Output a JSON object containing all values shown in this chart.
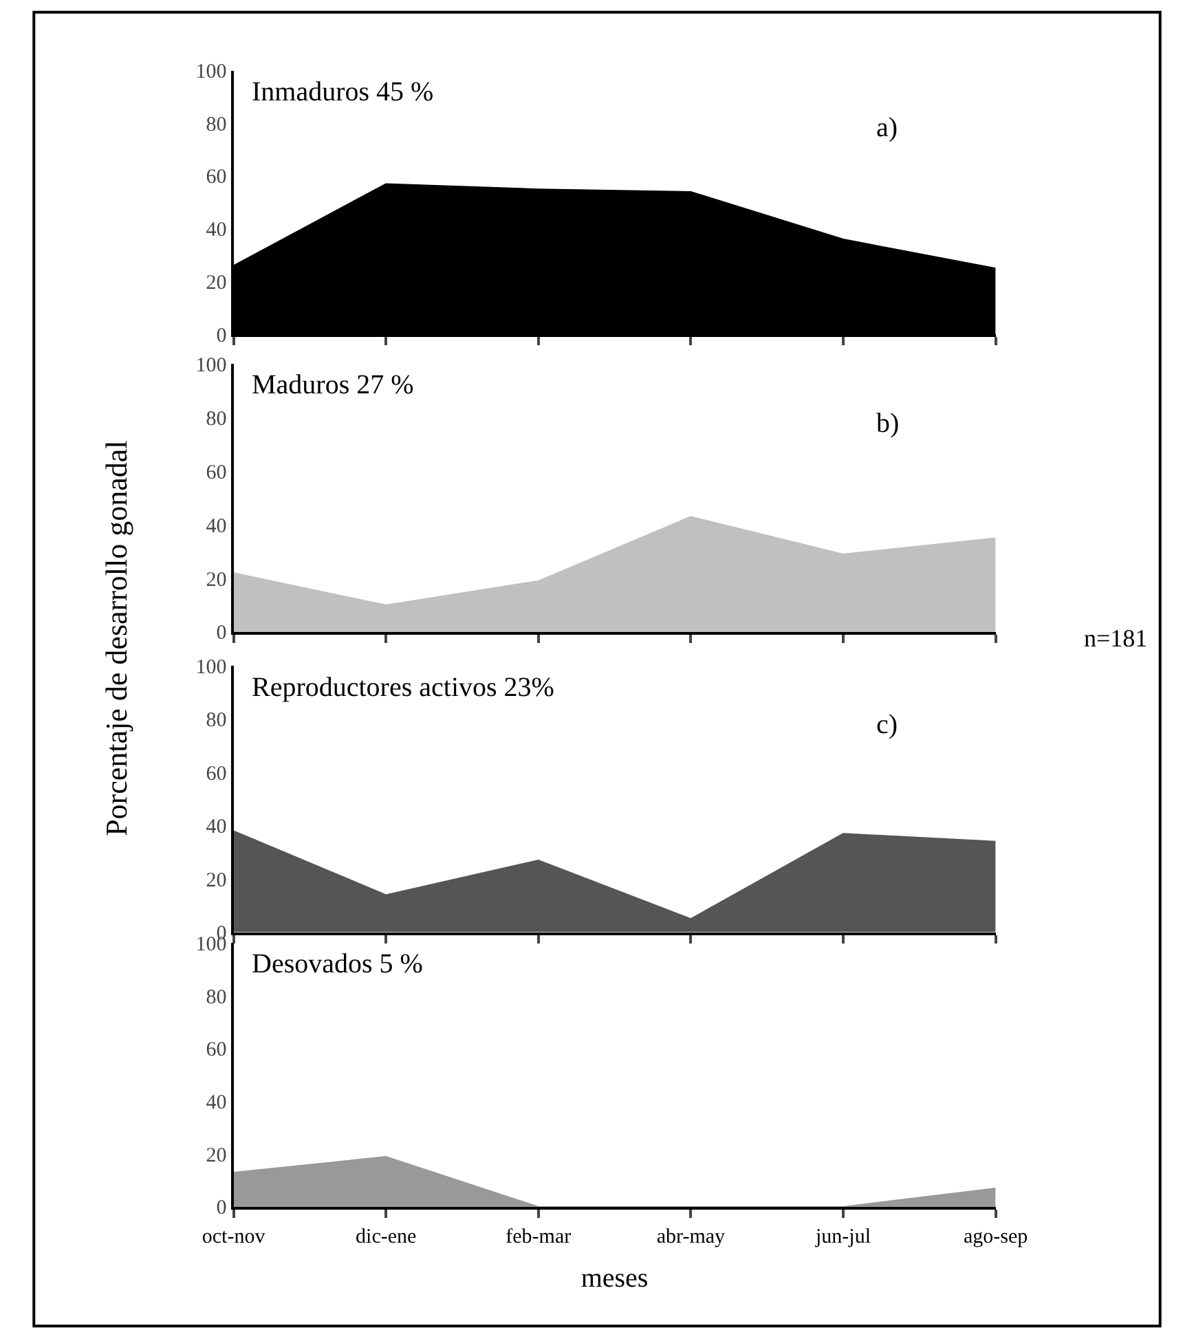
{
  "chart_data": [
    {
      "type": "area",
      "categories": [
        null,
        null,
        null,
        null,
        null,
        null
      ],
      "series": [
        {
          "color": "#000000",
          "values": [
            26,
            57,
            55,
            54,
            36,
            25
          ]
        }
      ],
      "ylim": [
        0,
        100
      ],
      "yticks": [
        0,
        20,
        40,
        60,
        80,
        100
      ],
      "tick_labels": "y",
      "grid": false,
      "annotations": [
        "Inmaduros 45 %",
        "a)"
      ]
    },
    {
      "type": "area",
      "categories": [
        null,
        null,
        null,
        null,
        null,
        null
      ],
      "series": [
        {
          "color": "#c0c0c0",
          "values": [
            22,
            10,
            19,
            43,
            29,
            35
          ]
        }
      ],
      "ylim": [
        0,
        100
      ],
      "yticks": [
        0,
        20,
        40,
        60,
        80,
        100
      ],
      "tick_labels": "y",
      "grid": false,
      "ylabel": "Porcentaje de desarrollo gonadal",
      "annotations": [
        "Maduros 27 %",
        "b)",
        "n=181"
      ]
    },
    {
      "type": "area",
      "categories": [
        null,
        null,
        null,
        null,
        null,
        null
      ],
      "series": [
        {
          "color": "#555555",
          "values": [
            38,
            14,
            27,
            5,
            37,
            34
          ]
        }
      ],
      "ylim": [
        0,
        100
      ],
      "yticks": [
        0,
        20,
        40,
        60,
        80,
        100
      ],
      "tick_labels": "y",
      "grid": false,
      "annotations": [
        "Reproductores activos 23%",
        "c)"
      ]
    },
    {
      "type": "area",
      "categories": [
        "oct-nov",
        "dic-ene",
        "feb-mar",
        "abr-may",
        "jun-jul",
        "ago-sep"
      ],
      "series": [
        {
          "color": "#999999",
          "values": [
            13,
            19,
            0,
            0,
            0,
            7
          ]
        }
      ],
      "ylim": [
        0,
        100
      ],
      "yticks": [
        0,
        20,
        40,
        60,
        80,
        100
      ],
      "grid": false,
      "xlabel": "meses",
      "annotations": [
        "Desovados 5 %"
      ]
    }
  ]
}
